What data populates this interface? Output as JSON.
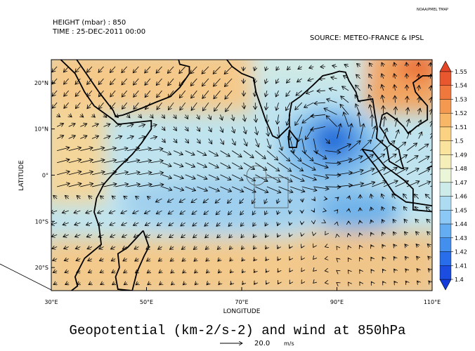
{
  "header": {
    "logo": "NOAA/PMEL TMAP",
    "height_label": "HEIGHT (mbar) : 850",
    "time_label": "TIME : 25-DEC-2011 00:00",
    "source": "SOURCE: METEO-FRANCE & IPSL"
  },
  "map": {
    "x_axis_label": "LONGITUDE",
    "y_axis_label": "LATITUDE",
    "xlim": [
      30,
      110
    ],
    "ylim": [
      -25,
      25
    ],
    "xticks": [
      {
        "value": 30,
        "label": "30°E"
      },
      {
        "value": 50,
        "label": "50°E"
      },
      {
        "value": 70,
        "label": "70°E"
      },
      {
        "value": 90,
        "label": "90°E"
      },
      {
        "value": 110,
        "label": "110°E"
      }
    ],
    "yticks": [
      {
        "value": 20,
        "label": "20°N"
      },
      {
        "value": 10,
        "label": "10°N"
      },
      {
        "value": 0,
        "label": "0°"
      },
      {
        "value": -10,
        "label": "10°S"
      },
      {
        "value": -20,
        "label": "20°S"
      }
    ]
  },
  "colorbar": {
    "ticks": [
      1.55,
      1.54,
      1.53,
      1.52,
      1.51,
      1.5,
      1.49,
      1.48,
      1.47,
      1.46,
      1.45,
      1.44,
      1.43,
      1.42,
      1.41,
      1.4
    ]
  },
  "title": "Geopotential (km-2/s-2) and wind at 850hPa",
  "reference_vector": {
    "value": {
      "value": 20,
      "label": "20.0"
    },
    "unit": "m/s"
  }
}
